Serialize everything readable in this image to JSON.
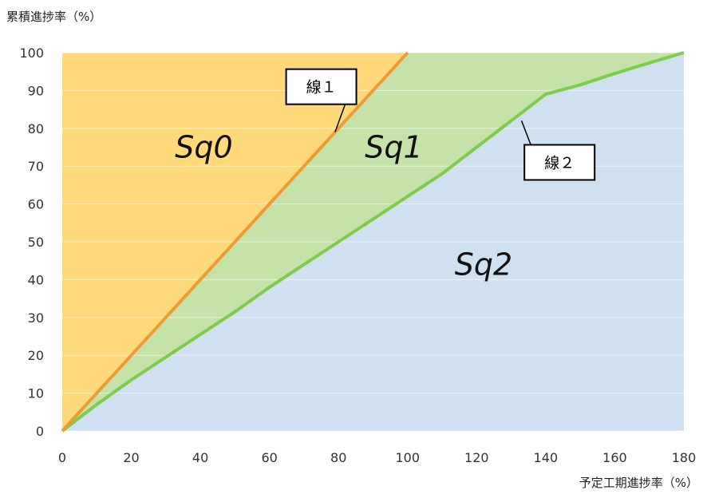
{
  "chart_data": {
    "type": "area",
    "xlabel": "予定工期進捗率（%）",
    "ylabel": "累積進捗率（%）",
    "xlim": [
      0,
      180
    ],
    "ylim": [
      0,
      100
    ],
    "xticks": [
      0,
      20,
      40,
      60,
      80,
      100,
      120,
      140,
      160,
      180
    ],
    "yticks": [
      0,
      10,
      20,
      30,
      40,
      50,
      60,
      70,
      80,
      90,
      100
    ],
    "grid": true,
    "series": [
      {
        "name": "線１",
        "color": "#ed9b33",
        "points": [
          [
            0,
            0
          ],
          [
            100,
            100
          ]
        ]
      },
      {
        "name": "線２",
        "color": "#7ecb4d",
        "points": [
          [
            0,
            0
          ],
          [
            10,
            7
          ],
          [
            20,
            13.5
          ],
          [
            30,
            19.5
          ],
          [
            40,
            25.5
          ],
          [
            50,
            31.5
          ],
          [
            60,
            38
          ],
          [
            70,
            44
          ],
          [
            80,
            50
          ],
          [
            90,
            56
          ],
          [
            100,
            62
          ],
          [
            110,
            68
          ],
          [
            120,
            75
          ],
          [
            130,
            82
          ],
          [
            140,
            89
          ],
          [
            150,
            91.5
          ],
          [
            160,
            94.5
          ],
          [
            170,
            97.3
          ],
          [
            180,
            100
          ]
        ]
      }
    ],
    "regions": [
      {
        "name": "Sq0",
        "color": "#ffd97a",
        "label_at": [
          41,
          75
        ]
      },
      {
        "name": "Sq1",
        "color": "#c5e3a8",
        "label_at": [
          96,
          75
        ]
      },
      {
        "name": "Sq2",
        "color": "#cfe0f1",
        "label_at": [
          122,
          44
        ]
      }
    ],
    "callouts": [
      {
        "text": "線１",
        "box_at": [
          75,
          91
        ],
        "points_to": [
          79,
          79
        ]
      },
      {
        "text": "線２",
        "box_at": [
          144,
          71
        ],
        "points_to": [
          133,
          82
        ]
      }
    ]
  }
}
